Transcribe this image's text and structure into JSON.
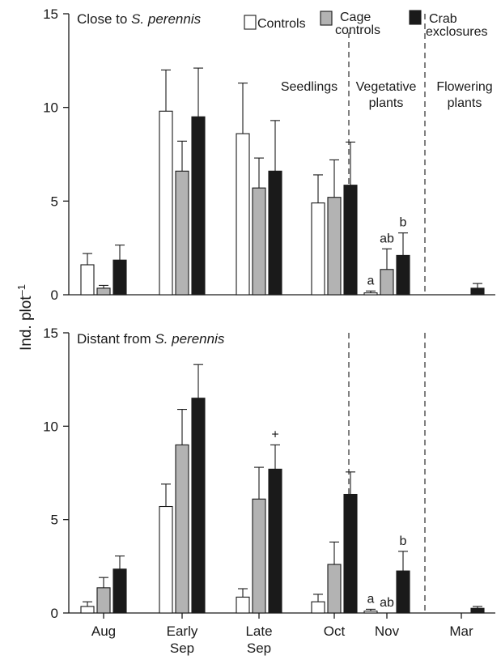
{
  "colors": {
    "Controls": "#ffffff",
    "Cage controls": "#b3b3b3",
    "Crab exclosures": "#1a1a1a",
    "axis": "#1a1a1a"
  },
  "legend": {
    "controls": "Controls",
    "cage_line1": "Cage",
    "cage_line2": "controls",
    "crab_line1": "Crab",
    "crab_line2": "exclosures"
  },
  "ylabel_text": "Ind. plot",
  "ylabel_sup": "–1",
  "chart_data": [
    {
      "type": "bar",
      "title_prefix": "Close to ",
      "title_species": "S. perennis",
      "ylabel": "Ind. plot–1",
      "ylim": [
        0,
        15
      ],
      "yticks": [
        0,
        5,
        10,
        15
      ],
      "categories": [
        "Aug",
        "Early Sep",
        "Late Sep",
        "Oct",
        "Nov",
        "Mar"
      ],
      "series": [
        {
          "name": "Controls",
          "values": [
            1.6,
            9.8,
            8.6,
            4.9,
            0.1,
            null
          ],
          "errors": [
            0.6,
            2.2,
            2.7,
            1.5,
            0.1,
            null
          ]
        },
        {
          "name": "Cage controls",
          "values": [
            0.35,
            6.6,
            5.7,
            5.2,
            1.35,
            null
          ],
          "errors": [
            0.15,
            1.6,
            1.6,
            2.0,
            1.1,
            null
          ]
        },
        {
          "name": "Crab exclosures",
          "values": [
            1.85,
            9.5,
            6.6,
            5.85,
            2.1,
            0.35
          ],
          "errors": [
            0.8,
            2.6,
            2.7,
            2.3,
            1.2,
            0.25
          ]
        }
      ],
      "sections": [
        {
          "line1": "Seedlings",
          "line2": ""
        },
        {
          "line1": "Vegetative",
          "line2": "plants"
        },
        {
          "line1": "Flowering",
          "line2": "plants"
        }
      ],
      "annotations": [
        {
          "text": "a",
          "category": "Nov",
          "series": "Controls"
        },
        {
          "text": "ab",
          "category": "Nov",
          "series": "Cage controls"
        },
        {
          "text": "b",
          "category": "Nov",
          "series": "Crab exclosures"
        }
      ]
    },
    {
      "type": "bar",
      "title_prefix": "Distant from ",
      "title_species": "S. perennis",
      "ylabel": "Ind. plot–1",
      "ylim": [
        0,
        15
      ],
      "yticks": [
        0,
        5,
        10,
        15
      ],
      "categories": [
        "Aug",
        "Early Sep",
        "Late Sep",
        "Oct",
        "Nov",
        "Mar"
      ],
      "tick_labels": [
        [
          "Aug"
        ],
        [
          "Early",
          "Sep"
        ],
        [
          "Late",
          "Sep"
        ],
        [
          "Oct"
        ],
        [
          "Nov"
        ],
        [
          "Mar"
        ]
      ],
      "series": [
        {
          "name": "Controls",
          "values": [
            0.35,
            5.7,
            0.85,
            0.6,
            0.1,
            null
          ],
          "errors": [
            0.25,
            1.2,
            0.45,
            0.4,
            0.1,
            null
          ]
        },
        {
          "name": "Cage controls",
          "values": [
            1.35,
            9.0,
            6.1,
            2.6,
            null,
            null
          ],
          "errors": [
            0.55,
            1.9,
            1.7,
            1.2,
            null,
            null
          ]
        },
        {
          "name": "Crab exclosures",
          "values": [
            2.35,
            11.5,
            7.7,
            6.35,
            2.25,
            0.25
          ],
          "errors": [
            0.7,
            1.8,
            1.3,
            1.2,
            1.05,
            0.1
          ]
        }
      ],
      "annotations": [
        {
          "text": "+",
          "category": "Late Sep",
          "series": "Crab exclosures"
        },
        {
          "text": "a",
          "category": "Nov",
          "series": "Controls"
        },
        {
          "text": "ab",
          "category": "Nov",
          "series": "Cage controls"
        },
        {
          "text": "b",
          "category": "Nov",
          "series": "Crab exclosures"
        }
      ]
    }
  ]
}
